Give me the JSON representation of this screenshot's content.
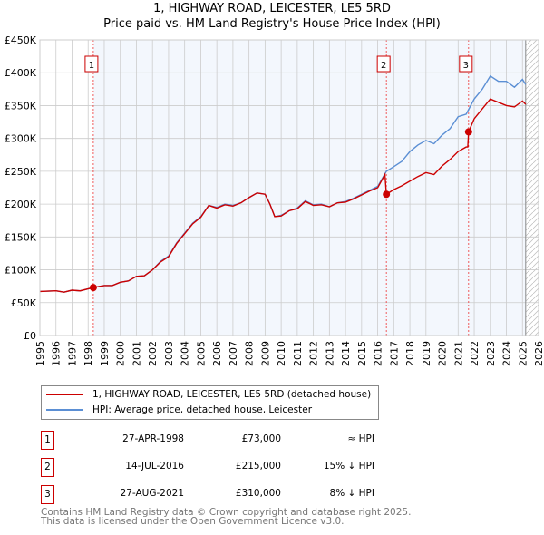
{
  "chart_data": {
    "type": "line",
    "title": "1, HIGHWAY ROAD, LEICESTER, LE5 5RD",
    "subtitle": "Price paid vs. HM Land Registry's House Price Index (HPI)",
    "xlim": [
      1995,
      2026
    ],
    "ylim": [
      0,
      450000
    ],
    "x_ticks": [
      "1995",
      "1996",
      "1997",
      "1998",
      "1999",
      "2000",
      "2001",
      "2002",
      "2003",
      "2004",
      "2005",
      "2006",
      "2007",
      "2008",
      "2009",
      "2010",
      "2011",
      "2012",
      "2013",
      "2014",
      "2015",
      "2016",
      "2017",
      "2018",
      "2019",
      "2020",
      "2021",
      "2022",
      "2023",
      "2024",
      "2025",
      "2026"
    ],
    "y_ticks": [
      {
        "v": 0,
        "l": "£0"
      },
      {
        "v": 50000,
        "l": "£50K"
      },
      {
        "v": 100000,
        "l": "£100K"
      },
      {
        "v": 150000,
        "l": "£150K"
      },
      {
        "v": 200000,
        "l": "£200K"
      },
      {
        "v": 250000,
        "l": "£250K"
      },
      {
        "v": 300000,
        "l": "£300K"
      },
      {
        "v": 350000,
        "l": "£350K"
      },
      {
        "v": 400000,
        "l": "£400K"
      },
      {
        "v": 450000,
        "l": "£450K"
      }
    ],
    "grid": true,
    "series": [
      {
        "name": "1, HIGHWAY ROAD, LEICESTER, LE5 5RD (detached house)",
        "color": "#cc0000",
        "x": [
          1995,
          1996,
          1996.5,
          1997,
          1997.5,
          1998.32,
          1999,
          1999.5,
          2000,
          2000.5,
          2001,
          2001.5,
          2002,
          2002.5,
          2003,
          2003.5,
          2004,
          2004.5,
          2005,
          2005.5,
          2006,
          2006.5,
          2007,
          2007.5,
          2008,
          2008.5,
          2009,
          2009.3,
          2009.6,
          2010,
          2010.5,
          2011,
          2011.5,
          2012,
          2012.5,
          2013,
          2013.5,
          2014,
          2014.5,
          2015,
          2015.5,
          2016,
          2016.45,
          2016.54,
          2017,
          2017.5,
          2018,
          2018.5,
          2019,
          2019.5,
          2020,
          2020.5,
          2021,
          2021.5,
          2021.6,
          2021.65,
          2022,
          2022.5,
          2023,
          2023.5,
          2024,
          2024.5,
          2025,
          2025.2
        ],
        "y": [
          67000,
          68000,
          66000,
          69000,
          68000,
          73000,
          76000,
          76000,
          81000,
          83000,
          90000,
          91000,
          100000,
          112000,
          120000,
          140000,
          155000,
          170000,
          180000,
          198000,
          194000,
          199000,
          197000,
          202000,
          210000,
          217000,
          215000,
          200000,
          181000,
          182000,
          190000,
          193000,
          204000,
          198000,
          199000,
          196000,
          202000,
          203000,
          208000,
          214000,
          220000,
          225000,
          245000,
          215000,
          222000,
          228000,
          235000,
          242000,
          248000,
          245000,
          258000,
          268000,
          280000,
          287000,
          287000,
          310000,
          330000,
          345000,
          360000,
          355000,
          350000,
          348000,
          357000,
          352000
        ]
      },
      {
        "name": "HPI: Average price, detached house, Leicester",
        "color": "#5b8fd4",
        "x": [
          1995,
          1996,
          1996.5,
          1997,
          1997.5,
          1998.32,
          1999,
          1999.5,
          2000,
          2000.5,
          2001,
          2001.5,
          2002,
          2002.5,
          2003,
          2003.5,
          2004,
          2004.5,
          2005,
          2005.5,
          2006,
          2006.5,
          2007,
          2007.5,
          2008,
          2008.5,
          2009,
          2009.3,
          2009.6,
          2010,
          2010.5,
          2011,
          2011.5,
          2012,
          2012.5,
          2013,
          2013.5,
          2014,
          2014.5,
          2015,
          2015.5,
          2016,
          2016.54,
          2017,
          2017.5,
          2018,
          2018.5,
          2019,
          2019.5,
          2020,
          2020.5,
          2021,
          2021.5,
          2022,
          2022.5,
          2023,
          2023.5,
          2024,
          2024.5,
          2025,
          2025.2
        ],
        "y": [
          67000,
          68000,
          66000,
          69000,
          68000,
          73000,
          76000,
          76000,
          81000,
          83000,
          90000,
          91000,
          100000,
          113000,
          121000,
          141000,
          156000,
          171000,
          181000,
          198000,
          195000,
          200000,
          198000,
          202000,
          210000,
          217000,
          215000,
          200000,
          181000,
          183000,
          190000,
          194000,
          205000,
          199000,
          200000,
          196000,
          202000,
          204000,
          209000,
          215000,
          221000,
          227000,
          250000,
          257000,
          265000,
          280000,
          290000,
          297000,
          292000,
          305000,
          315000,
          333000,
          337000,
          360000,
          375000,
          395000,
          387000,
          387000,
          378000,
          390000,
          382000
        ]
      }
    ],
    "sales": [
      {
        "label": "1",
        "x": 1998.32,
        "y": 73000
      },
      {
        "label": "2",
        "x": 2016.54,
        "y": 215000
      },
      {
        "label": "3",
        "x": 2021.65,
        "y": 310000
      }
    ],
    "forecast_start": 2025.2
  },
  "legend": [
    "1, HIGHWAY ROAD, LEICESTER, LE5 5RD (detached house)",
    "HPI: Average price, detached house, Leicester"
  ],
  "table": [
    {
      "num": "1",
      "date": "27-APR-1998",
      "price": "£73,000",
      "hpi": "≈ HPI"
    },
    {
      "num": "2",
      "date": "14-JUL-2016",
      "price": "£215,000",
      "hpi": "15% ↓ HPI"
    },
    {
      "num": "3",
      "date": "27-AUG-2021",
      "price": "£310,000",
      "hpi": "8% ↓ HPI"
    }
  ],
  "footer": [
    "Contains HM Land Registry data © Crown copyright and database right 2025.",
    "This data is licensed under the Open Government Licence v3.0."
  ]
}
